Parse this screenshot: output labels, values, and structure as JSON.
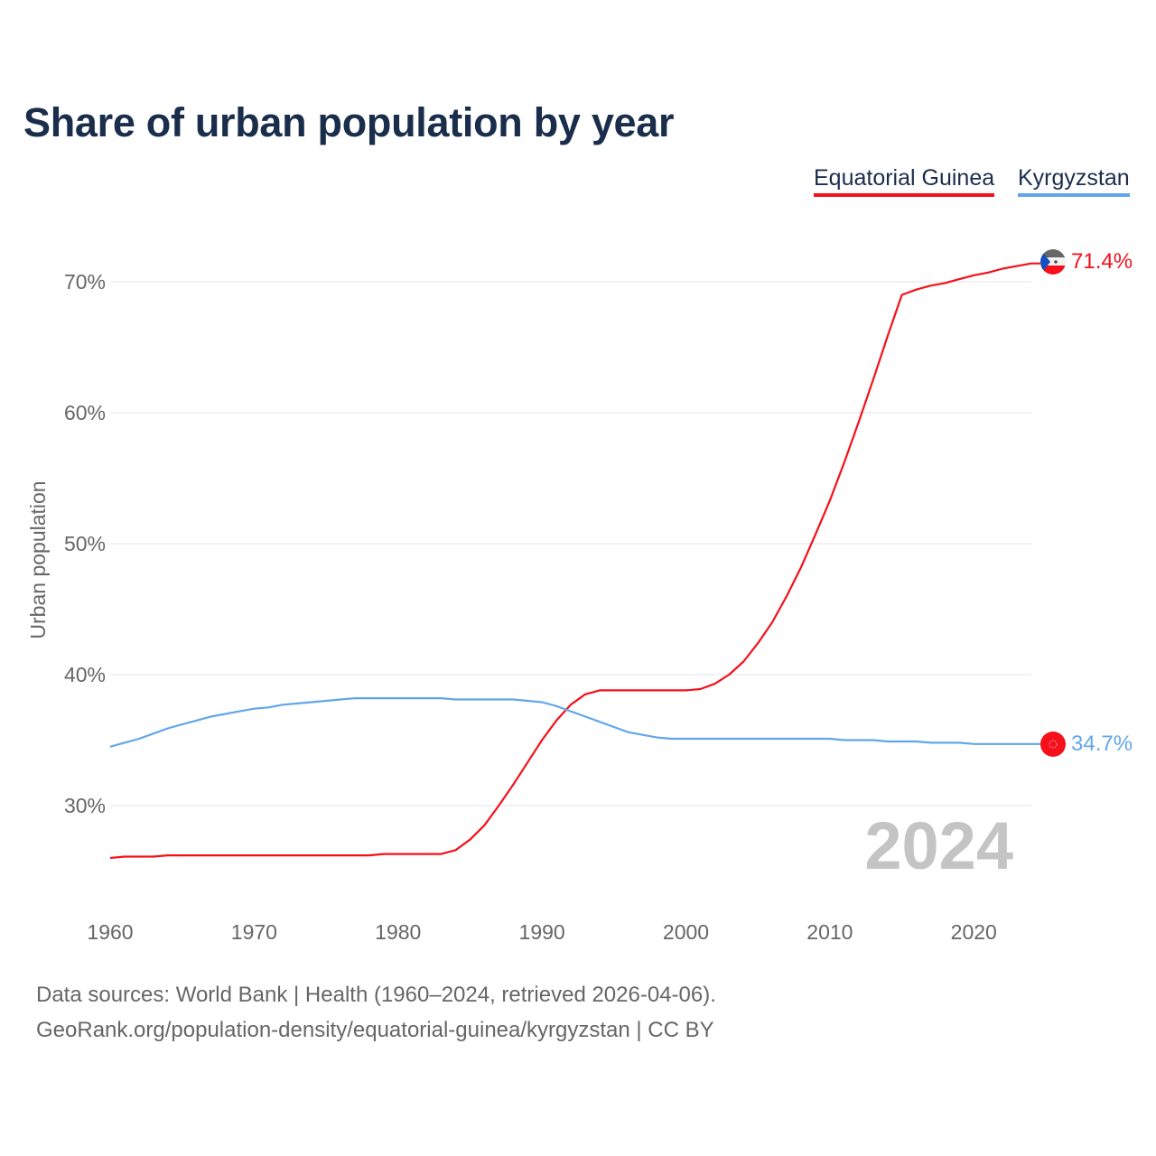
{
  "chart_data": {
    "type": "line",
    "title": "Share of urban population by year",
    "ylabel": "Urban population",
    "xlabel": "",
    "xlim": [
      1960,
      2024
    ],
    "ylim": [
      23,
      73
    ],
    "x_ticks": [
      1960,
      1970,
      1980,
      1990,
      2000,
      2010,
      2020
    ],
    "x_tick_labels": [
      "1960",
      "1970",
      "1980",
      "1990",
      "2000",
      "2010",
      "2020"
    ],
    "y_ticks": [
      30,
      40,
      50,
      60,
      70
    ],
    "y_tick_labels": [
      "30%",
      "40%",
      "50%",
      "60%",
      "70%"
    ],
    "grid": true,
    "legend_placement": "top-right",
    "year_watermark": "2024",
    "series": [
      {
        "name": "Equatorial Guinea",
        "color": "#f5101a",
        "end_label": "71.4%",
        "flag": "equatorial-guinea-flag",
        "x": [
          1960,
          1961,
          1962,
          1963,
          1964,
          1965,
          1966,
          1967,
          1968,
          1969,
          1970,
          1971,
          1972,
          1973,
          1974,
          1975,
          1976,
          1977,
          1978,
          1979,
          1980,
          1981,
          1982,
          1983,
          1984,
          1985,
          1986,
          1987,
          1988,
          1989,
          1990,
          1991,
          1992,
          1993,
          1994,
          1995,
          1996,
          1997,
          1998,
          1999,
          2000,
          2001,
          2002,
          2003,
          2004,
          2005,
          2006,
          2007,
          2008,
          2009,
          2010,
          2011,
          2012,
          2013,
          2014,
          2015,
          2016,
          2017,
          2018,
          2019,
          2020,
          2021,
          2022,
          2023,
          2024
        ],
        "values": [
          26.0,
          26.1,
          26.1,
          26.1,
          26.2,
          26.2,
          26.2,
          26.2,
          26.2,
          26.2,
          26.2,
          26.2,
          26.2,
          26.2,
          26.2,
          26.2,
          26.2,
          26.2,
          26.2,
          26.3,
          26.3,
          26.3,
          26.3,
          26.3,
          26.6,
          27.4,
          28.5,
          30.0,
          31.6,
          33.3,
          35.0,
          36.5,
          37.7,
          38.5,
          38.8,
          38.8,
          38.8,
          38.8,
          38.8,
          38.8,
          38.8,
          38.9,
          39.3,
          40.0,
          41.0,
          42.4,
          44.0,
          46.0,
          48.2,
          50.7,
          53.3,
          56.2,
          59.3,
          62.5,
          65.8,
          69.0,
          69.4,
          69.7,
          69.9,
          70.2,
          70.5,
          70.7,
          71.0,
          71.2,
          71.4
        ]
      },
      {
        "name": "Kyrgyzstan",
        "color": "#62a6ea",
        "end_label": "34.7%",
        "flag": "kyrgyzstan-flag",
        "x": [
          1960,
          1961,
          1962,
          1963,
          1964,
          1965,
          1966,
          1967,
          1968,
          1969,
          1970,
          1971,
          1972,
          1973,
          1974,
          1975,
          1976,
          1977,
          1978,
          1979,
          1980,
          1981,
          1982,
          1983,
          1984,
          1985,
          1986,
          1987,
          1988,
          1989,
          1990,
          1991,
          1992,
          1993,
          1994,
          1995,
          1996,
          1997,
          1998,
          1999,
          2000,
          2001,
          2002,
          2003,
          2004,
          2005,
          2006,
          2007,
          2008,
          2009,
          2010,
          2011,
          2012,
          2013,
          2014,
          2015,
          2016,
          2017,
          2018,
          2019,
          2020,
          2021,
          2022,
          2023,
          2024
        ],
        "values": [
          34.5,
          34.8,
          35.1,
          35.5,
          35.9,
          36.2,
          36.5,
          36.8,
          37.0,
          37.2,
          37.4,
          37.5,
          37.7,
          37.8,
          37.9,
          38.0,
          38.1,
          38.2,
          38.2,
          38.2,
          38.2,
          38.2,
          38.2,
          38.2,
          38.1,
          38.1,
          38.1,
          38.1,
          38.1,
          38.0,
          37.9,
          37.6,
          37.2,
          36.8,
          36.4,
          36.0,
          35.6,
          35.4,
          35.2,
          35.1,
          35.1,
          35.1,
          35.1,
          35.1,
          35.1,
          35.1,
          35.1,
          35.1,
          35.1,
          35.1,
          35.1,
          35.0,
          35.0,
          35.0,
          34.9,
          34.9,
          34.9,
          34.8,
          34.8,
          34.8,
          34.7,
          34.7,
          34.7,
          34.7,
          34.7
        ]
      }
    ]
  },
  "footer": {
    "line1": "Data sources: World Bank | Health (1960–2024, retrieved 2026-04-06).",
    "line2": "GeoRank.org/population-density/equatorial-guinea/kyrgyzstan | CC BY"
  }
}
